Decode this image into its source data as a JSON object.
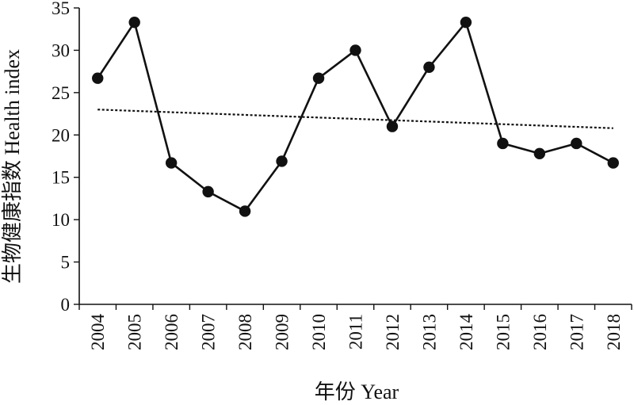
{
  "chart_data": {
    "type": "line",
    "title": "",
    "xlabel": "年份 Year",
    "ylabel": "生物健康指数 Health index",
    "categories": [
      "2004",
      "2005",
      "2006",
      "2007",
      "2008",
      "2009",
      "2010",
      "2011",
      "2012",
      "2013",
      "2014",
      "2015",
      "2016",
      "2017",
      "2018"
    ],
    "series": [
      {
        "values": [
          26.7,
          33.3,
          16.7,
          13.3,
          11.0,
          16.9,
          26.7,
          30.0,
          21.0,
          28.0,
          33.3,
          19.0,
          17.8,
          19.0,
          16.7
        ],
        "color": "#111111",
        "marker": "circle"
      }
    ],
    "trendline": {
      "style": "dashed",
      "start": 23.0,
      "end": 20.8,
      "color": "#111111"
    },
    "ylim": [
      0,
      35
    ],
    "yticks": [
      "0",
      "5",
      "10",
      "15",
      "20",
      "25",
      "30",
      "35"
    ],
    "grid": false,
    "legend": "none"
  }
}
